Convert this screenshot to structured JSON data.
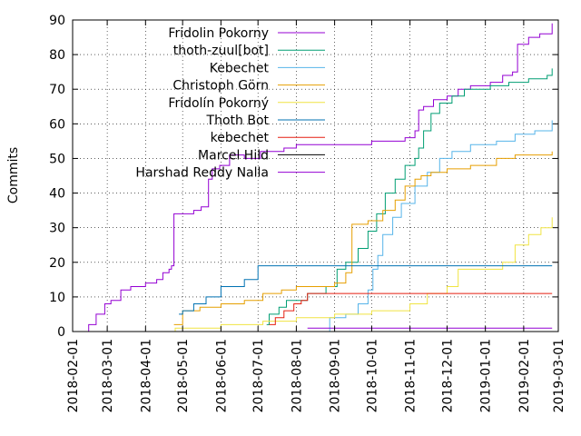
{
  "chart_data": {
    "type": "line",
    "step": true,
    "ylabel": "Commits",
    "xlabel": "",
    "title": "",
    "ylim": [
      0,
      90
    ],
    "xlim": [
      "2018-02-01",
      "2019-03-01"
    ],
    "yticks": [
      0,
      10,
      20,
      30,
      40,
      50,
      60,
      70,
      80,
      90
    ],
    "xticks": [
      "2018-02-01",
      "2018-03-01",
      "2018-04-01",
      "2018-05-01",
      "2018-06-01",
      "2018-07-01",
      "2018-08-01",
      "2018-09-01",
      "2018-10-01",
      "2018-11-01",
      "2018-12-01",
      "2019-01-01",
      "2019-02-01",
      "2019-03-01"
    ],
    "grid": true,
    "legend_position": "top-left",
    "series": [
      {
        "name": "Fridolin Pokorny",
        "color": "#9400d3",
        "x": [
          "2018-02-09",
          "2018-02-14",
          "2018-02-20",
          "2018-02-27",
          "2018-03-04",
          "2018-03-12",
          "2018-03-20",
          "2018-04-01",
          "2018-04-10",
          "2018-04-15",
          "2018-04-20",
          "2018-04-22",
          "2018-04-24",
          "2018-05-01",
          "2018-05-10",
          "2018-05-16",
          "2018-05-22",
          "2018-05-25",
          "2018-05-31",
          "2018-06-08",
          "2018-06-20",
          "2018-07-03",
          "2018-07-12",
          "2018-07-22",
          "2018-08-01",
          "2018-08-12",
          "2018-09-01",
          "2018-09-15",
          "2018-10-01",
          "2018-10-15",
          "2018-10-28",
          "2018-11-05",
          "2018-11-08",
          "2018-11-12",
          "2018-11-20",
          "2018-12-01",
          "2018-12-10",
          "2018-12-20",
          "2019-01-05",
          "2019-01-15",
          "2019-01-23",
          "2019-01-27",
          "2019-02-05",
          "2019-02-14",
          "2019-02-24"
        ],
        "y": [
          0,
          2,
          5,
          8,
          9,
          12,
          13,
          14,
          15,
          17,
          18,
          19,
          34,
          34,
          35,
          36,
          44,
          47,
          48,
          51,
          50,
          52,
          52,
          53,
          54,
          54,
          54,
          54,
          55,
          55,
          56,
          58,
          64,
          65,
          67,
          68,
          70,
          71,
          72,
          74,
          75,
          83,
          85,
          86,
          89
        ]
      },
      {
        "name": "thoth-zuul[bot]",
        "color": "#009e73",
        "x": [
          "2018-07-08",
          "2018-07-10",
          "2018-07-18",
          "2018-07-24",
          "2018-08-10",
          "2018-08-25",
          "2018-09-03",
          "2018-09-10",
          "2018-09-20",
          "2018-09-28",
          "2018-10-05",
          "2018-10-12",
          "2018-10-20",
          "2018-10-28",
          "2018-11-05",
          "2018-11-08",
          "2018-11-12",
          "2018-11-18",
          "2018-11-25",
          "2018-12-05",
          "2018-12-15",
          "2019-01-05",
          "2019-01-20",
          "2019-02-05",
          "2019-02-20",
          "2019-02-24"
        ],
        "y": [
          2,
          5,
          7,
          9,
          11,
          13,
          18,
          20,
          24,
          29,
          34,
          40,
          44,
          48,
          50,
          53,
          58,
          63,
          66,
          68,
          70,
          71,
          72,
          73,
          74,
          76
        ]
      },
      {
        "name": "Kebechet",
        "color": "#56b4e9",
        "x": [
          "2018-08-15",
          "2018-08-28",
          "2018-09-10",
          "2018-09-20",
          "2018-09-28",
          "2018-10-02",
          "2018-10-06",
          "2018-10-10",
          "2018-10-18",
          "2018-10-25",
          "2018-11-05",
          "2018-11-15",
          "2018-11-25",
          "2018-12-05",
          "2018-12-20",
          "2019-01-10",
          "2019-01-25",
          "2019-02-10",
          "2019-02-24"
        ],
        "y": [
          0,
          4,
          5,
          8,
          12,
          18,
          22,
          28,
          33,
          37,
          42,
          46,
          50,
          52,
          54,
          55,
          57,
          58,
          61
        ]
      },
      {
        "name": "Christoph Görn",
        "color": "#e69f00",
        "x": [
          "2018-04-24",
          "2018-05-01",
          "2018-05-15",
          "2018-06-01",
          "2018-06-20",
          "2018-07-05",
          "2018-07-20",
          "2018-08-01",
          "2018-08-15",
          "2018-09-01",
          "2018-09-10",
          "2018-09-15",
          "2018-09-28",
          "2018-10-10",
          "2018-10-20",
          "2018-10-28",
          "2018-11-05",
          "2018-11-10",
          "2018-11-18",
          "2018-12-01",
          "2018-12-20",
          "2019-01-10",
          "2019-01-25",
          "2019-02-10",
          "2019-02-24"
        ],
        "y": [
          2,
          6,
          7,
          8,
          9,
          11,
          12,
          13,
          13,
          14,
          17,
          31,
          32,
          35,
          38,
          42,
          44,
          45,
          46,
          47,
          48,
          50,
          51,
          51,
          52
        ]
      },
      {
        "name": "Fridolín Pokorný",
        "color": "#f0e442",
        "x": [
          "2018-02-01",
          "2018-04-25",
          "2018-06-01",
          "2018-07-05",
          "2018-08-01",
          "2018-09-01",
          "2018-10-01",
          "2018-11-01",
          "2018-11-15",
          "2018-12-01",
          "2018-12-10",
          "2019-01-15",
          "2019-01-25",
          "2019-02-05",
          "2019-02-15",
          "2019-02-24"
        ],
        "y": [
          0,
          1,
          2,
          3,
          4,
          5,
          6,
          8,
          11,
          13,
          18,
          20,
          25,
          28,
          30,
          33
        ]
      },
      {
        "name": "Thoth Bot",
        "color": "#0072b2",
        "x": [
          "2018-04-28",
          "2018-05-01",
          "2018-05-10",
          "2018-05-20",
          "2018-06-01",
          "2018-06-20",
          "2018-07-01",
          "2019-02-24"
        ],
        "y": [
          5,
          6,
          8,
          10,
          13,
          15,
          19,
          19
        ]
      },
      {
        "name": "kebechet",
        "color": "#e51e10",
        "x": [
          "2018-07-10",
          "2018-07-15",
          "2018-07-22",
          "2018-07-30",
          "2018-08-05",
          "2018-08-10",
          "2019-02-24"
        ],
        "y": [
          2,
          4,
          6,
          8,
          9,
          11,
          11
        ]
      },
      {
        "name": "Marcel Hild",
        "color": "#000000",
        "x": [
          "2018-06-01",
          "2019-02-24"
        ],
        "y": [
          0,
          0
        ]
      },
      {
        "name": "Harshad Reddy Nalla",
        "color": "#9400d3",
        "x": [
          "2018-08-10",
          "2019-02-24"
        ],
        "y": [
          1,
          1
        ]
      }
    ]
  }
}
